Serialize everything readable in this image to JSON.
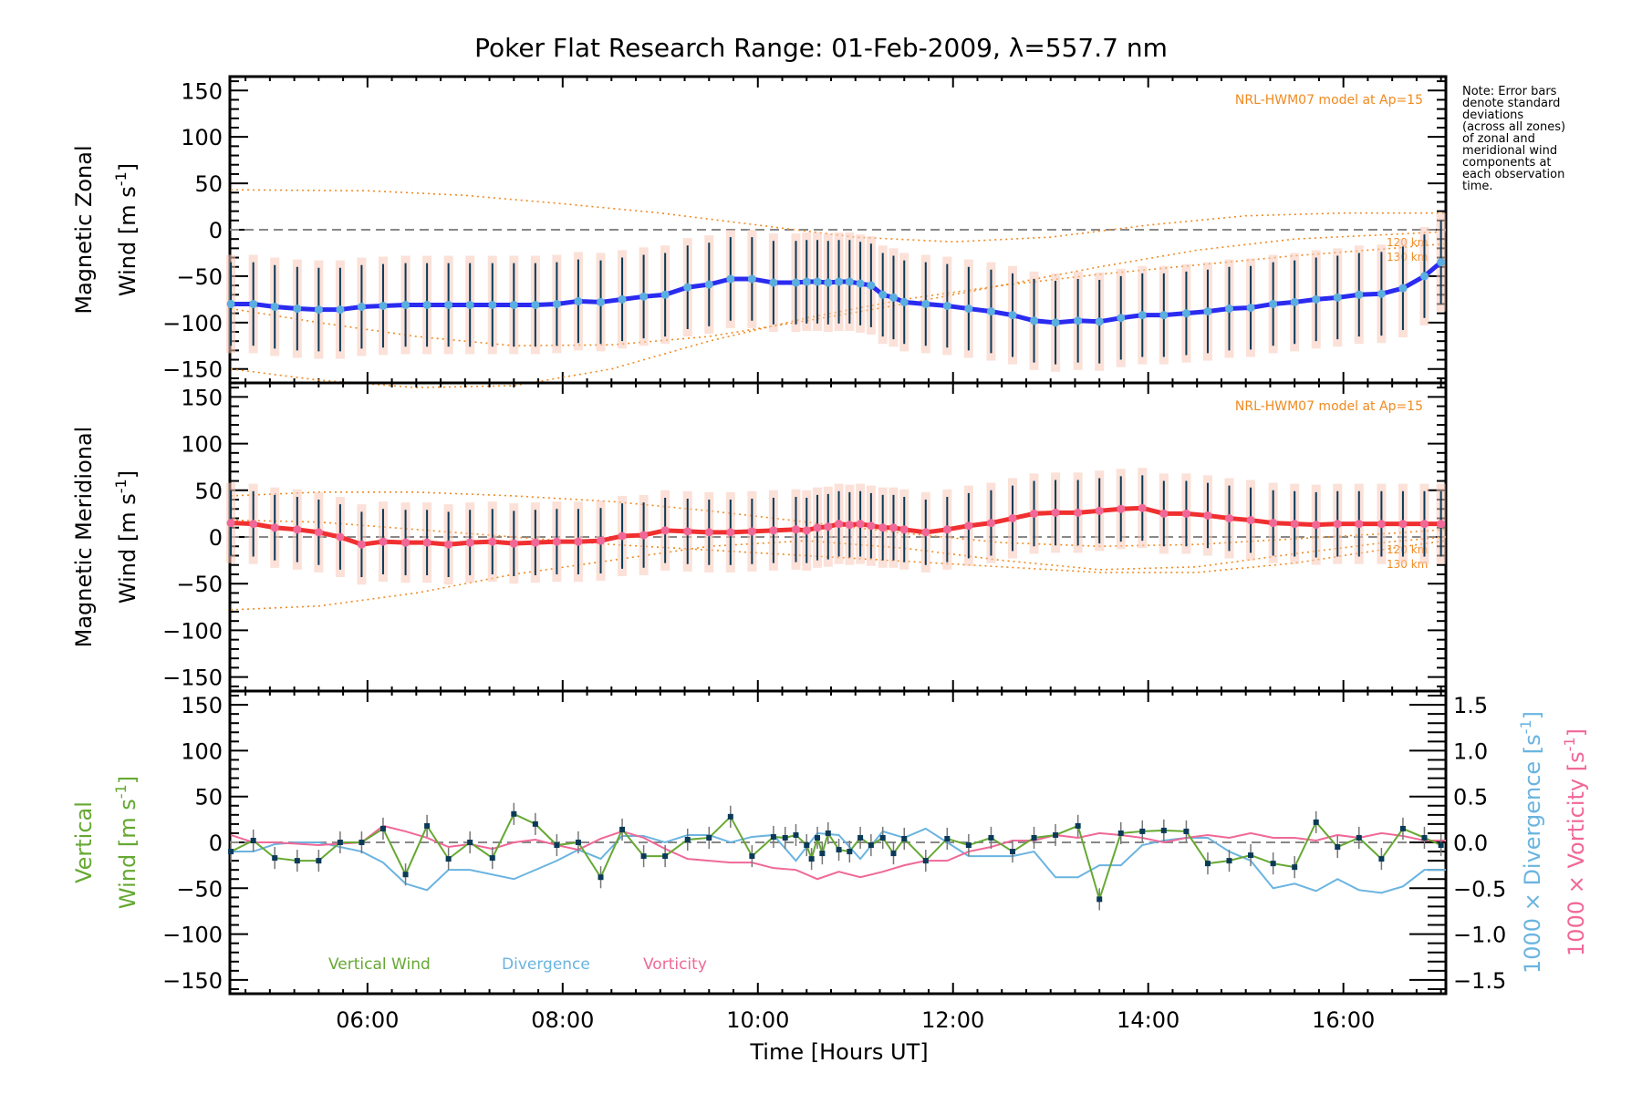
{
  "chart_data": {
    "type": "line",
    "title": "Poker Flat Research Range: 01-Feb-2009, λ=557.7 nm",
    "xlabel": "Time [Hours UT]",
    "xlim": [
      4.59,
      17.05
    ],
    "xticks": [
      {
        "v": 6,
        "label": "06:00"
      },
      {
        "v": 8,
        "label": "08:00"
      },
      {
        "v": 10,
        "label": "10:00"
      },
      {
        "v": 12,
        "label": "12:00"
      },
      {
        "v": 14,
        "label": "14:00"
      },
      {
        "v": 16,
        "label": "16:00"
      }
    ],
    "note": "Note: Error bars\ndenote standard\ndeviations\n(across all zones)\nof zonal and\nmeridional wind\ncomponents at\neach observation\ntime.",
    "panels": [
      {
        "name": "zonal",
        "ylabel_line1": "Magnetic Zonal",
        "ylabel_line2": "Wind [m s",
        "ylabel_sup": "-1",
        "ylabel_end": "]",
        "ylim": [
          -165,
          165
        ],
        "yticks": [
          150,
          100,
          50,
          0,
          -50,
          -100,
          -150
        ],
        "model_label": "NRL-HWM07 model at Ap=15",
        "model_alt_labels": [
          "120 km",
          "130 km"
        ],
        "series_color": "#2b2bf0",
        "t": [
          4.6,
          4.83,
          5.05,
          5.28,
          5.5,
          5.72,
          5.94,
          6.16,
          6.39,
          6.61,
          6.83,
          7.05,
          7.28,
          7.5,
          7.72,
          7.94,
          8.16,
          8.39,
          8.61,
          8.83,
          9.05,
          9.28,
          9.5,
          9.72,
          9.94,
          10.16,
          10.39,
          10.5,
          10.61,
          10.72,
          10.83,
          10.94,
          11.05,
          11.16,
          11.28,
          11.39,
          11.5,
          11.72,
          11.94,
          12.16,
          12.39,
          12.61,
          12.83,
          13.05,
          13.28,
          13.5,
          13.72,
          13.94,
          14.16,
          14.39,
          14.61,
          14.83,
          15.05,
          15.28,
          15.5,
          15.72,
          15.94,
          16.16,
          16.39,
          16.61,
          16.83,
          17.0
        ],
        "values": [
          -80,
          -80,
          -83,
          -85,
          -86,
          -86,
          -83,
          -82,
          -81,
          -81,
          -81,
          -81,
          -81,
          -81,
          -81,
          -80,
          -77,
          -78,
          -75,
          -72,
          -70,
          -62,
          -59,
          -53,
          -53,
          -57,
          -57,
          -56,
          -56,
          -57,
          -56,
          -56,
          -58,
          -60,
          -70,
          -73,
          -78,
          -80,
          -82,
          -85,
          -88,
          -92,
          -98,
          -100,
          -98,
          -99,
          -95,
          -92,
          -92,
          -90,
          -88,
          -85,
          -84,
          -80,
          -78,
          -75,
          -73,
          -70,
          -69,
          -63,
          -50,
          -35
        ],
        "err": 45,
        "models": [
          {
            "t": [
              4.6,
              6,
              7,
              8,
              9,
              10,
              11,
              12,
              13,
              14,
              15,
              16,
              17.05
            ],
            "v": [
              43,
              42,
              37,
              28,
              18,
              5,
              -8,
              -13,
              -8,
              5,
              15,
              18,
              18
            ]
          },
          {
            "t": [
              4.6,
              5.5,
              6.5,
              7.5,
              8.5,
              9.5,
              10.5,
              11.5,
              12.5,
              13.5,
              14.5,
              15.5,
              16.5,
              17.05
            ],
            "v": [
              -85,
              -100,
              -115,
              -125,
              -124,
              -115,
              -98,
              -80,
              -60,
              -40,
              -22,
              -10,
              -5,
              -2
            ]
          },
          {
            "t": [
              4.6,
              5.5,
              6.5,
              7.5,
              8.5,
              9.5,
              10.5,
              11.5,
              12.5,
              13.5,
              14.5,
              15.5,
              16.5,
              17.05
            ],
            "v": [
              -150,
              -162,
              -170,
              -168,
              -150,
              -120,
              -95,
              -75,
              -60,
              -48,
              -38,
              -28,
              -20,
              -15
            ]
          }
        ]
      },
      {
        "name": "meridional",
        "ylabel_line1": "Magnetic Meridional",
        "ylabel_line2": "Wind [m s",
        "ylabel_sup": "-1",
        "ylabel_end": "]",
        "ylim": [
          -165,
          165
        ],
        "yticks": [
          150,
          100,
          50,
          0,
          -50,
          -100,
          -150
        ],
        "model_label": "NRL-HWM07 model at Ap=15",
        "model_alt_labels": [
          "120 km",
          "130 km"
        ],
        "series_color": "#f03030",
        "t": [
          4.6,
          4.83,
          5.05,
          5.28,
          5.5,
          5.72,
          5.94,
          6.16,
          6.39,
          6.61,
          6.83,
          7.05,
          7.28,
          7.5,
          7.72,
          7.94,
          8.16,
          8.39,
          8.61,
          8.83,
          9.05,
          9.28,
          9.5,
          9.72,
          9.94,
          10.16,
          10.39,
          10.5,
          10.61,
          10.72,
          10.83,
          10.94,
          11.05,
          11.16,
          11.28,
          11.39,
          11.5,
          11.72,
          11.94,
          12.16,
          12.39,
          12.61,
          12.83,
          13.05,
          13.28,
          13.5,
          13.72,
          13.94,
          14.16,
          14.39,
          14.61,
          14.83,
          15.05,
          15.28,
          15.5,
          15.72,
          15.94,
          16.16,
          16.39,
          16.61,
          16.83,
          17.0
        ],
        "values": [
          15,
          14,
          10,
          8,
          5,
          0,
          -8,
          -5,
          -6,
          -6,
          -8,
          -6,
          -5,
          -7,
          -6,
          -5,
          -5,
          -4,
          1,
          2,
          7,
          6,
          5,
          5,
          6,
          7,
          8,
          7,
          10,
          11,
          14,
          13,
          14,
          12,
          10,
          10,
          8,
          5,
          8,
          12,
          15,
          20,
          25,
          26,
          26,
          28,
          30,
          31,
          25,
          25,
          23,
          20,
          18,
          15,
          14,
          13,
          14,
          14,
          14,
          14,
          14,
          14
        ],
        "err": 35,
        "models": [
          {
            "t": [
              4.6,
              5.5,
              6.5,
              7.5,
              8.5,
              9.5,
              10.5,
              11.5,
              12.5,
              13.5,
              14.5,
              15.5,
              16.5,
              17.05
            ],
            "v": [
              44,
              48,
              48,
              44,
              38,
              28,
              16,
              4,
              -6,
              -10,
              -8,
              -2,
              4,
              8
            ]
          },
          {
            "t": [
              4.6,
              5.5,
              6.5,
              7.5,
              8.5,
              9.5,
              10.5,
              11.5,
              12.5,
              13.5,
              14.5,
              15.5,
              16.5,
              17.05
            ],
            "v": [
              -78,
              -74,
              -60,
              -40,
              -25,
              -10,
              -4,
              -12,
              -25,
              -35,
              -32,
              -18,
              -5,
              0
            ]
          },
          {
            "t": [
              4.6,
              5.5,
              6.5,
              7.5,
              8.5,
              9.5,
              10.5,
              11.5,
              12.5,
              13.5,
              14.5,
              15.5,
              16.5,
              17.05
            ],
            "v": [
              18,
              16,
              8,
              0,
              -8,
              -14,
              -20,
              -26,
              -32,
              -38,
              -38,
              -28,
              -12,
              -4
            ]
          }
        ]
      },
      {
        "name": "vertical",
        "ylabel_line1": "Vertical",
        "ylabel_line2": "Wind [m s",
        "ylabel_sup": "-1",
        "ylabel_end": "]",
        "ylim": [
          -165,
          165
        ],
        "yticks": [
          150,
          100,
          50,
          0,
          -50,
          -100,
          -150
        ],
        "right_ylim": [
          -1.65,
          1.65
        ],
        "right_yticks": [
          "1.5",
          "1.0",
          "0.5",
          "0.0",
          "-0.5",
          "-1.0",
          "-1.5"
        ],
        "right_label_div": "1000 × Divergence [s",
        "right_label_vort": "1000 × Vorticity [s",
        "right_label_sup": "-1",
        "right_label_end": "]",
        "legend": [
          "Vertical Wind",
          "Divergence",
          "Vorticity"
        ],
        "colors": {
          "vertical": "#66a832",
          "divergence": "#6ab4e0",
          "vorticity": "#f06898"
        },
        "vertical": {
          "t": [
            4.6,
            4.83,
            5.05,
            5.28,
            5.5,
            5.72,
            5.94,
            6.16,
            6.39,
            6.61,
            6.83,
            7.05,
            7.28,
            7.5,
            7.72,
            7.94,
            8.16,
            8.39,
            8.61,
            8.83,
            9.05,
            9.28,
            9.5,
            9.72,
            9.94,
            10.16,
            10.28,
            10.39,
            10.5,
            10.55,
            10.61,
            10.66,
            10.72,
            10.83,
            10.94,
            11.05,
            11.16,
            11.28,
            11.39,
            11.5,
            11.72,
            11.94,
            12.16,
            12.39,
            12.61,
            12.83,
            13.05,
            13.28,
            13.5,
            13.72,
            13.94,
            14.16,
            14.39,
            14.61,
            14.83,
            15.05,
            15.28,
            15.5,
            15.72,
            15.94,
            16.16,
            16.39,
            16.61,
            16.83,
            17.0
          ],
          "v": [
            -10,
            2,
            -17,
            -20,
            -20,
            0,
            0,
            15,
            -35,
            18,
            -18,
            0,
            -17,
            31,
            20,
            -3,
            0,
            -38,
            14,
            -15,
            -15,
            3,
            5,
            28,
            -15,
            6,
            5,
            8,
            -3,
            -18,
            5,
            -12,
            10,
            -8,
            -10,
            5,
            -3,
            5,
            -12,
            4,
            -20,
            4,
            -3,
            5,
            -10,
            5,
            8,
            18,
            -62,
            10,
            12,
            13,
            12,
            -23,
            -20,
            -14,
            -23,
            -27,
            22,
            -5,
            5,
            -18,
            15,
            5,
            -3
          ],
          "err": 12
        },
        "divergence": {
          "t": [
            4.6,
            4.83,
            5.05,
            5.28,
            5.5,
            5.94,
            6.16,
            6.39,
            6.61,
            6.83,
            7.05,
            7.5,
            7.94,
            8.16,
            8.39,
            8.61,
            8.83,
            9.05,
            9.28,
            9.5,
            9.72,
            9.94,
            10.16,
            10.39,
            10.61,
            10.83,
            11.05,
            11.28,
            11.5,
            11.72,
            11.94,
            12.16,
            12.39,
            12.61,
            12.83,
            13.05,
            13.28,
            13.5,
            13.72,
            13.94,
            14.16,
            14.39,
            14.61,
            14.83,
            15.05,
            15.28,
            15.5,
            15.72,
            15.94,
            16.16,
            16.39,
            16.61,
            16.83,
            17.05
          ],
          "v": [
            -0.1,
            -0.1,
            -0.02,
            0.0,
            0.0,
            -0.1,
            -0.22,
            -0.45,
            -0.52,
            -0.3,
            -0.3,
            -0.4,
            -0.2,
            -0.08,
            -0.18,
            0.07,
            0.07,
            0.0,
            0.08,
            0.08,
            0.0,
            0.06,
            0.08,
            -0.2,
            0.1,
            0.08,
            -0.18,
            0.12,
            0.05,
            0.15,
            0.0,
            -0.15,
            -0.15,
            -0.15,
            -0.1,
            -0.38,
            -0.38,
            -0.25,
            -0.25,
            -0.03,
            0.02,
            0.05,
            0.05,
            -0.1,
            -0.2,
            -0.5,
            -0.45,
            -0.53,
            -0.4,
            -0.52,
            -0.55,
            -0.48,
            -0.3,
            -0.3
          ],
          "t_note": "approx"
        },
        "vorticity": {
          "t": [
            4.6,
            4.83,
            5.05,
            5.5,
            5.94,
            6.16,
            6.39,
            6.61,
            6.83,
            7.05,
            7.28,
            7.5,
            7.72,
            7.94,
            8.16,
            8.39,
            8.61,
            8.83,
            9.05,
            9.28,
            9.5,
            9.72,
            9.94,
            10.16,
            10.39,
            10.61,
            10.83,
            11.05,
            11.28,
            11.5,
            11.72,
            11.94,
            12.16,
            12.39,
            12.61,
            12.83,
            13.05,
            13.28,
            13.5,
            13.72,
            13.94,
            14.16,
            14.39,
            14.61,
            14.83,
            15.05,
            15.28,
            15.5,
            15.72,
            15.94,
            16.16,
            16.39,
            16.61,
            16.83,
            17.05
          ],
          "v": [
            0.08,
            0.0,
            0.0,
            -0.03,
            0.0,
            0.18,
            0.12,
            0.05,
            -0.05,
            -0.02,
            -0.07,
            0.0,
            0.03,
            -0.03,
            -0.08,
            0.04,
            0.12,
            0.05,
            -0.07,
            -0.18,
            -0.2,
            -0.22,
            -0.22,
            -0.28,
            -0.3,
            -0.4,
            -0.32,
            -0.38,
            -0.32,
            -0.25,
            -0.2,
            -0.2,
            -0.1,
            -0.05,
            0.02,
            0.02,
            0.08,
            0.05,
            0.1,
            0.08,
            0.05,
            0.0,
            0.05,
            0.08,
            0.05,
            0.1,
            0.05,
            0.05,
            0.02,
            0.08,
            0.05,
            0.1,
            0.07,
            0.02,
            0.02
          ]
        }
      }
    ]
  }
}
